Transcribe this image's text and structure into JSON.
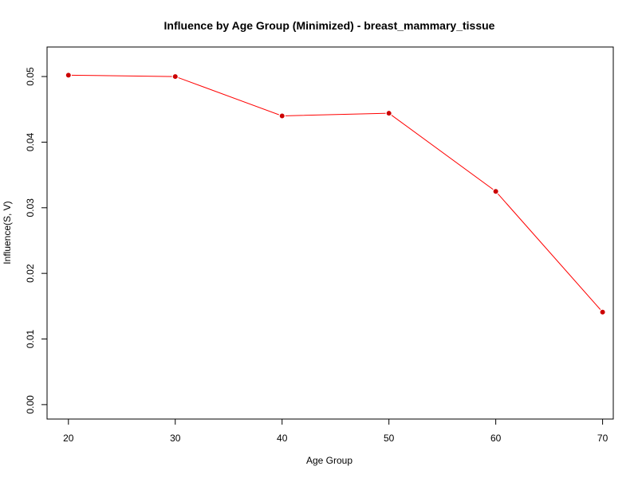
{
  "chart_data": {
    "type": "line",
    "title": "Influence by Age Group (Minimized) - breast_mammary_tissue",
    "xlabel": "Age Group",
    "ylabel": "Influence(S, V)",
    "x": [
      20,
      30,
      40,
      50,
      60,
      70
    ],
    "series": [
      {
        "values": [
          0.0502,
          0.05,
          0.044,
          0.0444,
          0.0325,
          0.0141
        ],
        "color": "#ff0000"
      }
    ],
    "x_ticks": [
      20,
      30,
      40,
      50,
      60,
      70
    ],
    "x_tick_labels": [
      "20",
      "30",
      "40",
      "50",
      "60",
      "70"
    ],
    "y_ticks": [
      0.0,
      0.01,
      0.02,
      0.03,
      0.04,
      0.05
    ],
    "y_tick_labels": [
      "0.00",
      "0.01",
      "0.02",
      "0.03",
      "0.04",
      "0.05"
    ],
    "xlim": [
      18,
      71
    ],
    "ylim": [
      -0.0022,
      0.0545
    ],
    "grid": false,
    "legend": "none",
    "marker_color": "#cc0000",
    "marker_outline": "#ffffff",
    "line_color": "#ff0000"
  }
}
